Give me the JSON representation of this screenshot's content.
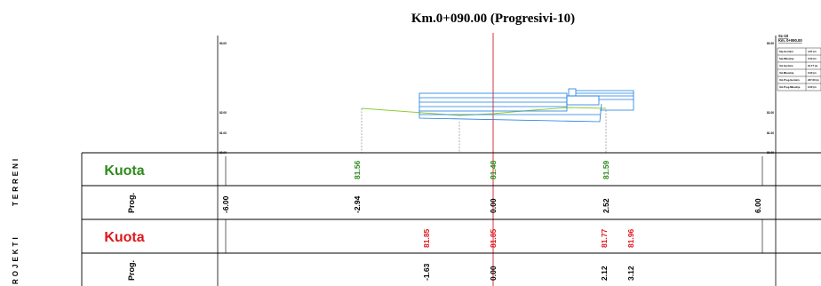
{
  "title": "Km.0+090.00 (Progresivi-10)",
  "side_labels": {
    "terrain": "TERRENI",
    "project": "ROJEKTI"
  },
  "elevations": {
    "left": [
      "83.00",
      "82.00",
      "81.00",
      "80.00"
    ],
    "right": [
      "83.00",
      "82.00",
      "81.00",
      "80.00"
    ]
  },
  "rows": {
    "terrain_kuota_label": "Kuota",
    "terrain_prog_label": "Prog.",
    "project_kuota_label": "Kuota",
    "project_prog_label": "Prog."
  },
  "colors": {
    "terrain": "#2e8b1a",
    "terrain_line": "#8acb2e",
    "project": "#e0161c",
    "structure": "#1a7be0",
    "axis": "#d0202a"
  },
  "chart_data": {
    "type": "cross-section",
    "title": "Km.0+090.00 (Progresivi-10)",
    "datum": 80.0,
    "elevation_labels": [
      83.0,
      82.0,
      81.0,
      80.0
    ],
    "terrain": {
      "points": [
        {
          "prog": -6.0,
          "kuota": null,
          "prog_label": "-6.00"
        },
        {
          "prog": -2.94,
          "kuota": 81.56,
          "kuota_label": "81.56",
          "prog_label": "-2.94"
        },
        {
          "prog": 0.0,
          "kuota": 81.48,
          "kuota_label": "81.48",
          "prog_label": "0.00"
        },
        {
          "prog": 2.52,
          "kuota": 81.59,
          "kuota_label": "81.59",
          "prog_label": "2.52"
        },
        {
          "prog": 6.0,
          "kuota": null,
          "prog_label": "6.00"
        }
      ]
    },
    "project": {
      "points": [
        {
          "prog": -1.63,
          "kuota": 81.85,
          "kuota_label": "81.85",
          "prog_label": "-1.63"
        },
        {
          "prog": 0.0,
          "kuota": 81.85,
          "kuota_label": "81.85",
          "prog_label": "0.00"
        },
        {
          "prog": 2.12,
          "kuota": 81.77,
          "kuota_label": "81.77",
          "prog_label": "2.12"
        },
        {
          "prog": 3.12,
          "kuota": 81.96,
          "kuota_label": "81.96",
          "prog_label": "3.12"
        }
      ]
    }
  },
  "info_box": {
    "heading": "Sc-10",
    "subheading": "Km. 0+090.00",
    "rows": [
      {
        "label": "Sip.Germim",
        "value": "4.67 (m"
      },
      {
        "label": "Sip.Mbushje",
        "value": "0.00 (m"
      },
      {
        "label": "Vol.Germim",
        "value": "16.77 (m"
      },
      {
        "label": "Vol.Mbushje",
        "value": "0.00 (m"
      },
      {
        "label": "Vol.Prog.Germim",
        "value": "237.60 (m"
      },
      {
        "label": "Vol.Prog.Mbushje",
        "value": "0.00 (m"
      }
    ]
  }
}
